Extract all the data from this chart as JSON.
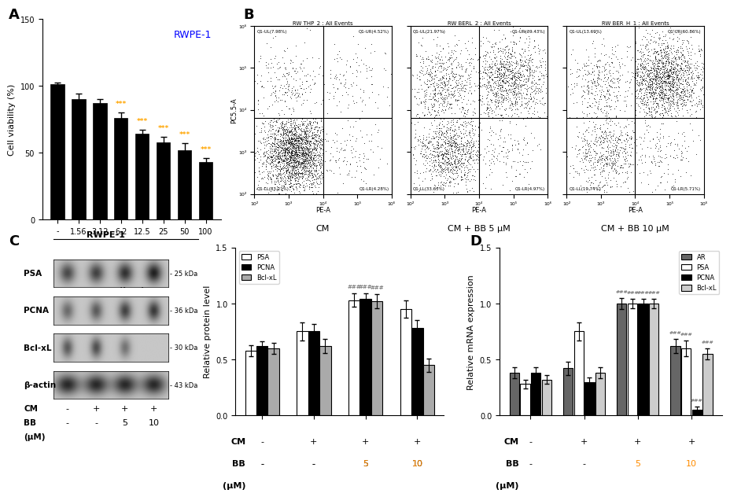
{
  "panel_A": {
    "title": "RWPE-1",
    "ylabel": "Cell viability (%)",
    "categories": [
      "-",
      "1.56",
      "3.12",
      "6.2",
      "12.5",
      "25",
      "50",
      "100"
    ],
    "values": [
      101,
      90,
      87,
      76,
      64,
      58,
      52,
      43
    ],
    "errors": [
      1.5,
      4,
      3,
      4,
      3,
      4,
      5,
      3
    ],
    "bar_color": "#000000",
    "sig_indices": [
      3,
      4,
      5,
      6,
      7
    ],
    "sig_label": "***",
    "sig_color": "#FFA500",
    "ylim": [
      0,
      150
    ],
    "yticks": [
      0,
      50,
      100,
      150
    ]
  },
  "panel_B": {
    "plots": [
      {
        "title": "RW THP_2 : All Events",
        "xlabel": "PE-A",
        "ylabel": "PC5.5-A",
        "quadrant_labels": [
          "Q1-UL(7.98%)",
          "Q1-UR(4.52%)",
          "Q1-LL(83.21%)",
          "Q1-LR(4.28%)"
        ],
        "caption": "CM",
        "n_ll": 2496,
        "n_ul": 240,
        "n_ur": 135,
        "n_lr": 129
      },
      {
        "title": "RW BERL_2 : All Events",
        "xlabel": "PE-A",
        "ylabel": "PC5.5-A",
        "quadrant_labels": [
          "Q1-UL(21.97%)",
          "Q1-UR(39.43%)",
          "Q1-LL(33.63%)",
          "Q1-LR(4.97%)"
        ],
        "caption": "CM + BB 5 μM",
        "n_ll": 1009,
        "n_ul": 659,
        "n_ur": 1183,
        "n_lr": 149
      },
      {
        "title": "RW BER_H_1 : All Events",
        "xlabel": "PE-A",
        "ylabel": "PC5.5-A",
        "quadrant_labels": [
          "Q1-UL(13.69%)",
          "Q1-UR(60.86%)",
          "Q1-LL(19.74%)",
          "Q1-LR(5.71%)"
        ],
        "caption": "CM + BB 10 μM",
        "n_ll": 592,
        "n_ul": 411,
        "n_ur": 1826,
        "n_lr": 171
      }
    ]
  },
  "panel_C_bar": {
    "PSA": [
      0.58,
      0.75,
      1.03,
      0.95
    ],
    "PCNA": [
      0.62,
      0.75,
      1.04,
      0.78
    ],
    "BclxL": [
      0.6,
      0.62,
      1.02,
      0.45
    ],
    "PSA_err": [
      0.05,
      0.08,
      0.06,
      0.08
    ],
    "PCNA_err": [
      0.04,
      0.07,
      0.05,
      0.07
    ],
    "BclxL_err": [
      0.05,
      0.06,
      0.06,
      0.06
    ],
    "ylabel": "Relative protein level",
    "ylim": [
      0,
      1.5
    ],
    "yticks": [
      0.0,
      0.5,
      1.0,
      1.5
    ],
    "cm_labels": [
      "-",
      "+",
      "+",
      "+"
    ],
    "bb_labels": [
      "-",
      "-",
      "5",
      "10"
    ],
    "colors": {
      "PSA": "#FFFFFF",
      "PCNA": "#000000",
      "BclxL": "#AAAAAA"
    },
    "sig_color": "#808080",
    "sig_label": "###",
    "sig_groups": [
      2
    ]
  },
  "panel_D_bar": {
    "AR": [
      0.38,
      0.42,
      1.0,
      0.62
    ],
    "PSA": [
      0.28,
      0.75,
      1.0,
      0.6
    ],
    "PCNA": [
      0.38,
      0.3,
      1.0,
      0.05
    ],
    "BclxL": [
      0.32,
      0.38,
      1.0,
      0.55
    ],
    "AR_err": [
      0.05,
      0.06,
      0.05,
      0.06
    ],
    "PSA_err": [
      0.04,
      0.08,
      0.04,
      0.07
    ],
    "PCNA_err": [
      0.05,
      0.04,
      0.04,
      0.03
    ],
    "BclxL_err": [
      0.04,
      0.05,
      0.04,
      0.05
    ],
    "ylabel": "Relative mRNA expression",
    "ylim": [
      0,
      1.5
    ],
    "yticks": [
      0.0,
      0.5,
      1.0,
      1.5
    ],
    "cm_labels": [
      "-",
      "+",
      "+",
      "+"
    ],
    "bb_labels": [
      "-",
      "-",
      "5",
      "10"
    ],
    "colors": {
      "AR": "#666666",
      "PSA": "#FFFFFF",
      "PCNA": "#000000",
      "BclxL": "#CCCCCC"
    },
    "sig_color": "#808080",
    "sig_label": "###",
    "sig_groups": [
      2,
      3
    ]
  },
  "panel_C_blot": {
    "title": "RWPE-1",
    "proteins": [
      "PSA",
      "PCNA",
      "Bcl-xL",
      "β-actin"
    ],
    "kDa": [
      "- 25 kDa",
      "- 36 kDa",
      "- 30 kDa",
      "- 43 kDa"
    ],
    "cm_labels": [
      "-",
      "+",
      "+",
      "+"
    ],
    "bb_labels": [
      "-",
      "-",
      "5",
      "10"
    ]
  },
  "background_color": "#FFFFFF"
}
